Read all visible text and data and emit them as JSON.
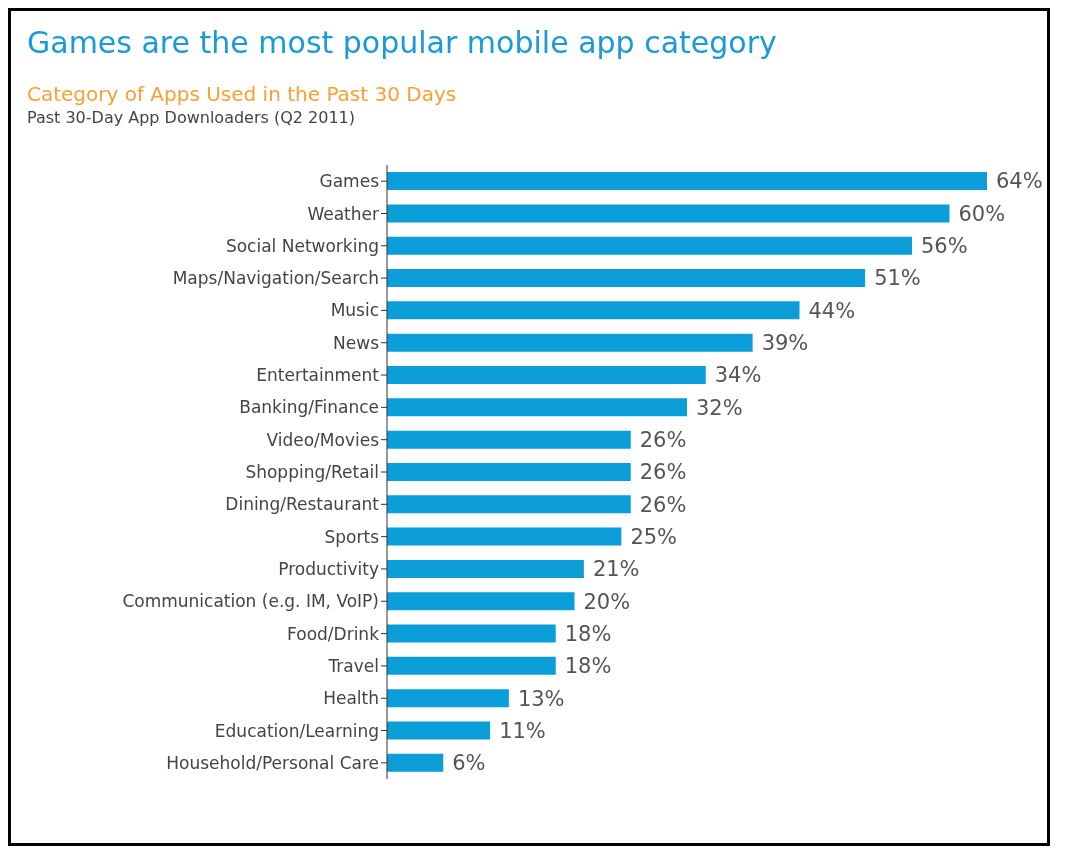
{
  "chart_data": {
    "type": "bar",
    "orientation": "horizontal",
    "title": "Games are the most popular mobile app category",
    "subtitle": "Category of Apps Used in the Past 30 Days",
    "annotations": [
      "Past 30-Day App Downloaders  (Q2 2011)"
    ],
    "categories": [
      "Games",
      "Weather",
      "Social Networking",
      "Maps/Navigation/Search",
      "Music",
      "News",
      "Entertainment",
      "Banking/Finance",
      "Video/Movies",
      "Shopping/Retail",
      "Dining/Restaurant",
      "Sports",
      "Productivity",
      "Communication (e.g. IM, VoIP)",
      "Food/Drink",
      "Travel",
      "Health",
      "Education/Learning",
      "Household/Personal Care"
    ],
    "values": [
      64,
      60,
      56,
      51,
      44,
      39,
      34,
      32,
      26,
      26,
      26,
      25,
      21,
      20,
      18,
      18,
      13,
      11,
      6
    ],
    "value_labels": [
      "64%",
      "60%",
      "56%",
      "51%",
      "44%",
      "39%",
      "34%",
      "32%",
      "26%",
      "26%",
      "26%",
      "25%",
      "21%",
      "20%",
      "18%",
      "18%",
      "13%",
      "11%",
      "6%"
    ],
    "color": "#0b9ed9"
  }
}
